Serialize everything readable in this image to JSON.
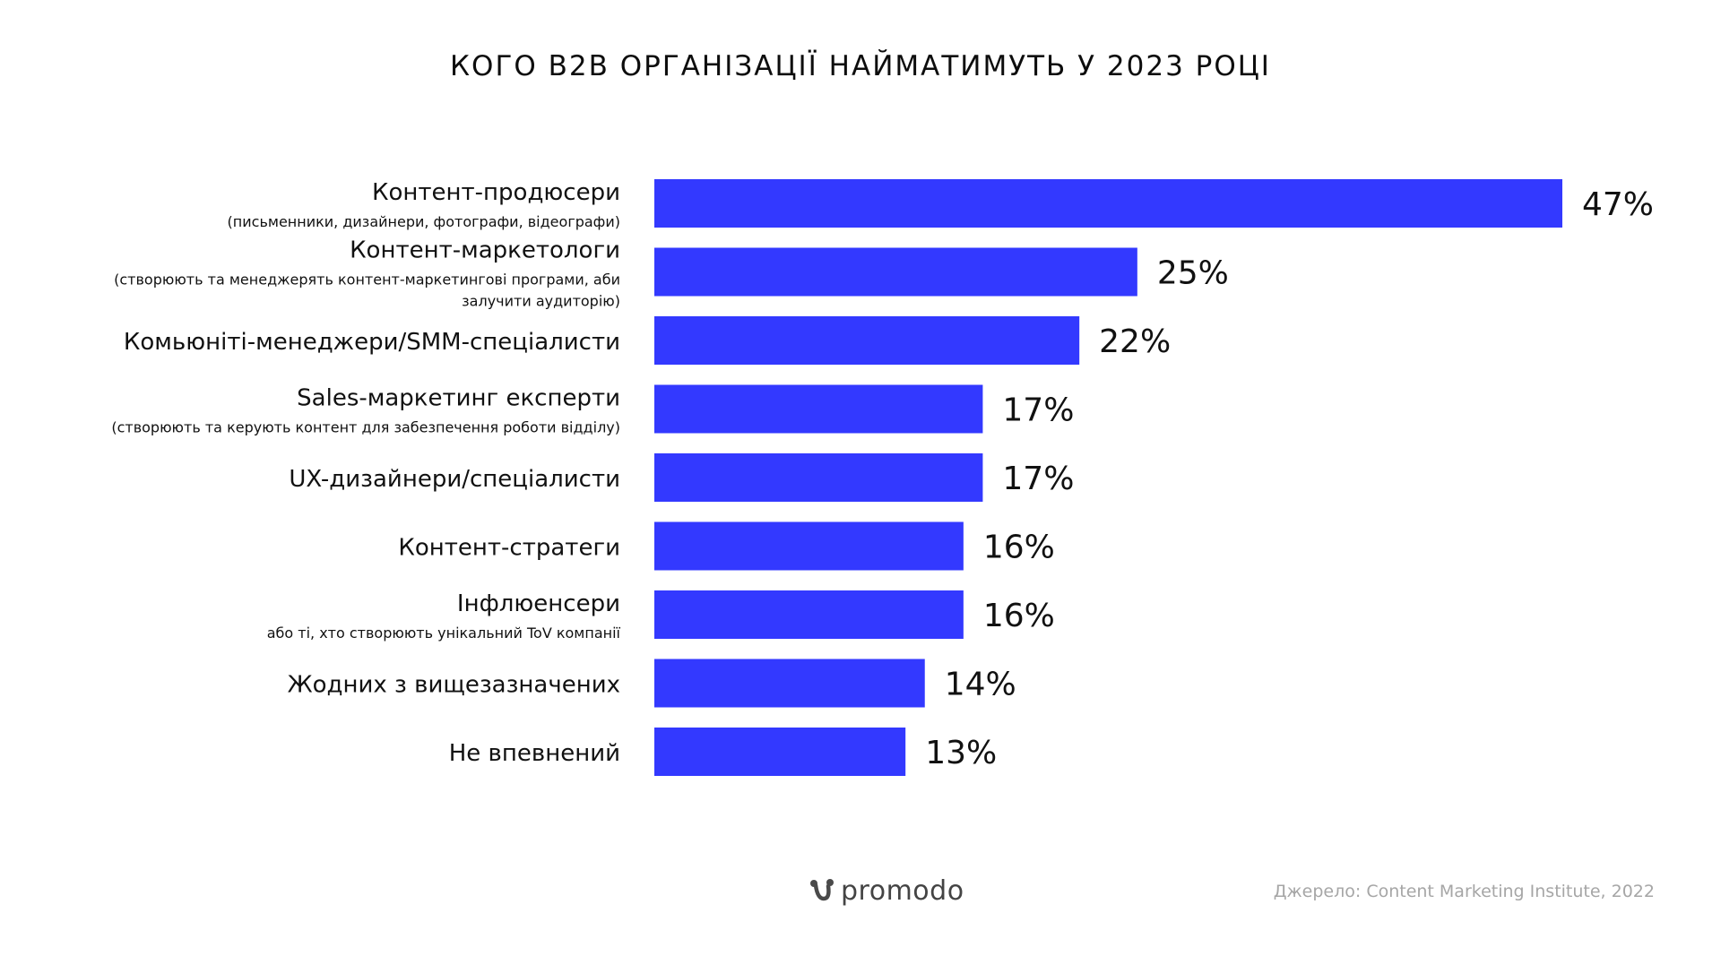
{
  "chart_data": {
    "type": "bar",
    "orientation": "horizontal",
    "title": "КОГО B2B ОРГАНІЗАЦІЇ НАЙМАТИМУТЬ У 2023 РОЦІ",
    "categories": [
      {
        "label": "Контент-продюсери",
        "sub": [
          "(письменники, дизайнери, фотографи, відеографи)"
        ]
      },
      {
        "label": "Контент-маркетологи",
        "sub": [
          "(створюють та менеджерять контент-маркетингові програми, аби",
          "залучити аудиторію)"
        ]
      },
      {
        "label": "Комьюніті-менеджери/SMM-спеціалисти",
        "sub": []
      },
      {
        "label": "Sales-маркетинг експерти",
        "sub": [
          "(створюють та керують контент для забезпечення роботи відділу)"
        ]
      },
      {
        "label": "UX-дизайнери/спеціалисти",
        "sub": []
      },
      {
        "label": "Контент-стратеги",
        "sub": []
      },
      {
        "label": "Інфлюенсери",
        "sub": [
          "або ті, хто створюють унікальний ToV компанії"
        ]
      },
      {
        "label": "Жодних з вищезазначених",
        "sub": []
      },
      {
        "label": "Не впевнений",
        "sub": []
      }
    ],
    "values": [
      47,
      25,
      22,
      17,
      17,
      16,
      16,
      14,
      13
    ],
    "value_labels": [
      "47%",
      "25%",
      "22%",
      "17%",
      "17%",
      "16%",
      "16%",
      "14%",
      "13%"
    ],
    "unit": "%",
    "bar_color": "#3339ff",
    "xlim": [
      0,
      47
    ]
  },
  "brand": {
    "name": "promodo",
    "icon": "promodo-logo-icon"
  },
  "source": "Джерело: Content Marketing Institute, 2022"
}
